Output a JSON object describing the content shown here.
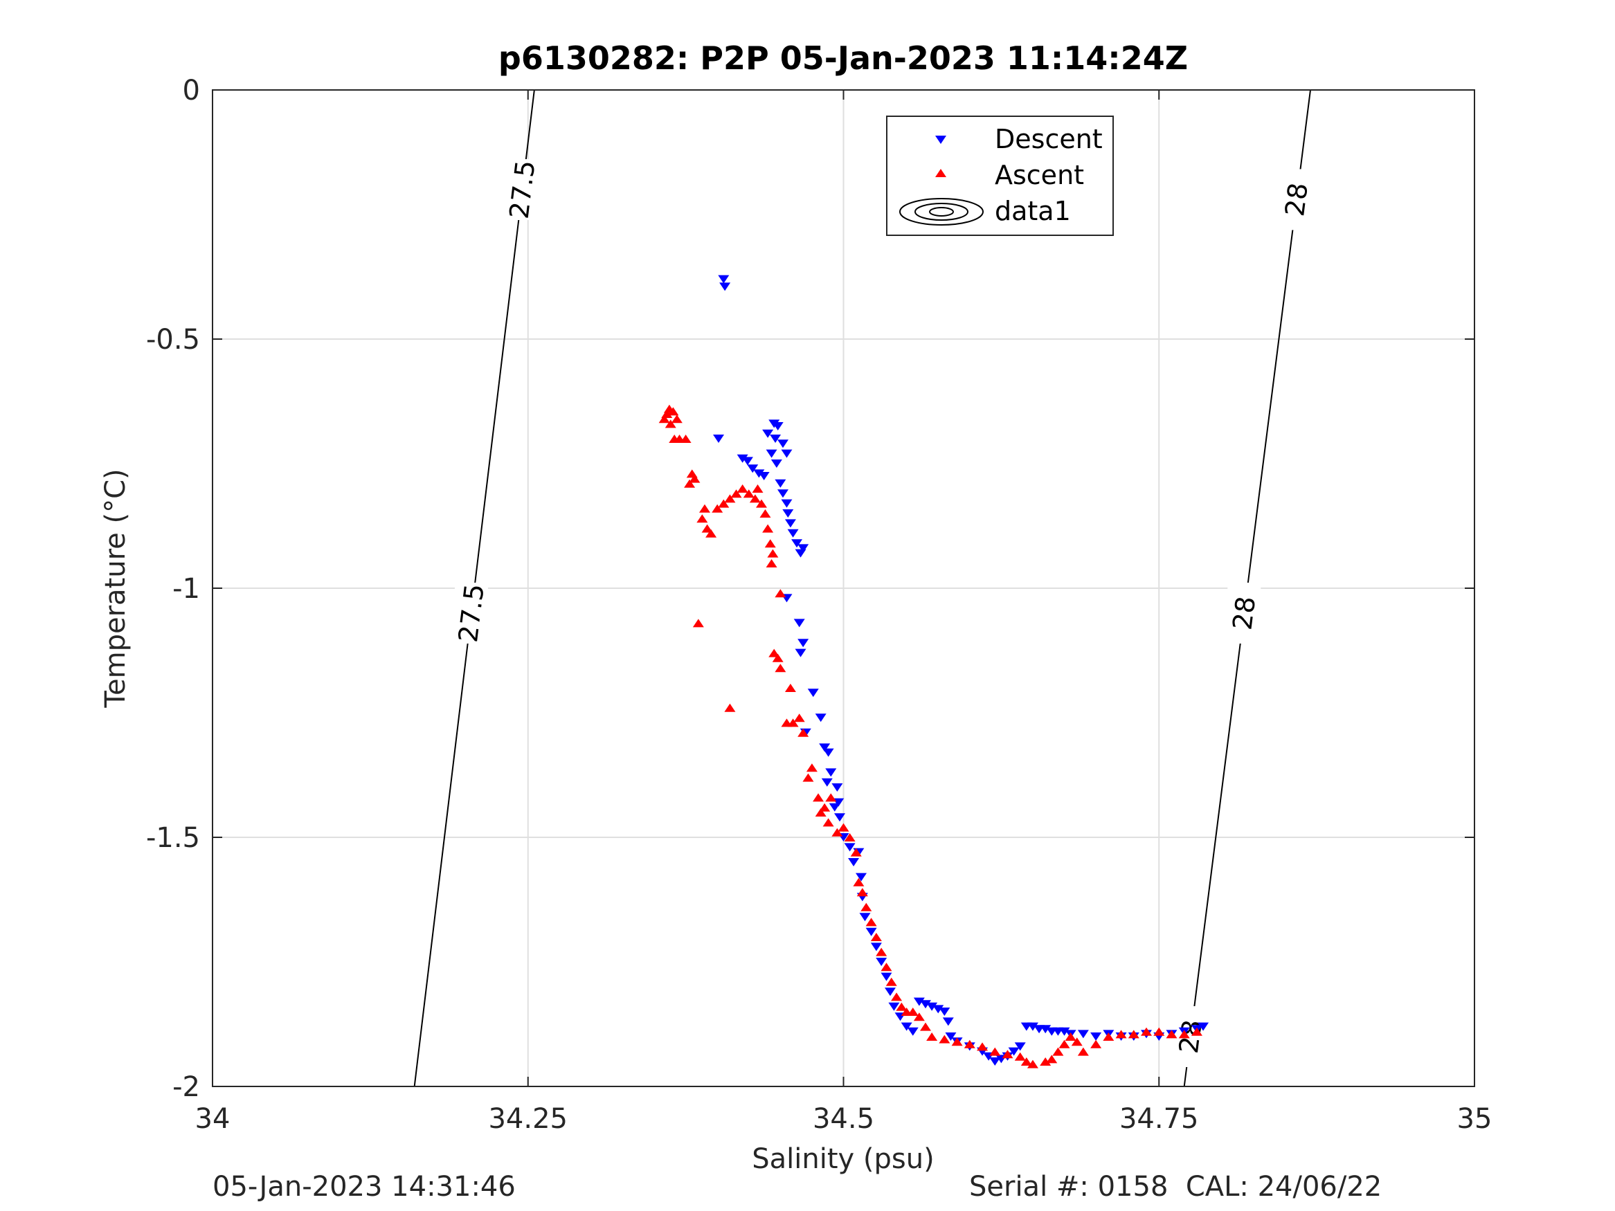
{
  "chart_data": {
    "type": "scatter",
    "title": "p6130282: P2P 05-Jan-2023 11:14:24Z",
    "xlabel": "Salinity (psu)",
    "ylabel": "Temperature (°C)",
    "xlim": [
      34,
      35
    ],
    "ylim": [
      -2,
      0
    ],
    "x_ticks": [
      34,
      34.25,
      34.5,
      34.75,
      35
    ],
    "x_tick_labels": [
      "34",
      "34.25",
      "34.5",
      "34.75",
      "35"
    ],
    "y_ticks": [
      0,
      -0.5,
      -1,
      -1.5,
      -2
    ],
    "y_tick_labels": [
      "0",
      "-0.5",
      "-1",
      "-1.5",
      "-2"
    ],
    "grid": true,
    "legend_position": "top-center",
    "series": [
      {
        "name": "Descent",
        "color": "#0000ff",
        "marker": "triangle-down",
        "points": [
          [
            34.405,
            -0.38
          ],
          [
            34.406,
            -0.395
          ],
          [
            34.401,
            -0.7
          ],
          [
            34.445,
            -0.67
          ],
          [
            34.448,
            -0.675
          ],
          [
            34.44,
            -0.69
          ],
          [
            34.446,
            -0.7
          ],
          [
            34.452,
            -0.71
          ],
          [
            34.455,
            -0.73
          ],
          [
            34.443,
            -0.73
          ],
          [
            34.447,
            -0.75
          ],
          [
            34.42,
            -0.74
          ],
          [
            34.424,
            -0.745
          ],
          [
            34.428,
            -0.76
          ],
          [
            34.433,
            -0.77
          ],
          [
            34.437,
            -0.775
          ],
          [
            34.45,
            -0.79
          ],
          [
            34.452,
            -0.81
          ],
          [
            34.455,
            -0.83
          ],
          [
            34.456,
            -0.85
          ],
          [
            34.458,
            -0.87
          ],
          [
            34.46,
            -0.89
          ],
          [
            34.463,
            -0.91
          ],
          [
            34.466,
            -0.93
          ],
          [
            34.468,
            -0.92
          ],
          [
            34.455,
            -1.02
          ],
          [
            34.465,
            -1.07
          ],
          [
            34.468,
            -1.11
          ],
          [
            34.466,
            -1.13
          ],
          [
            34.476,
            -1.21
          ],
          [
            34.482,
            -1.26
          ],
          [
            34.47,
            -1.29
          ],
          [
            34.485,
            -1.32
          ],
          [
            34.488,
            -1.33
          ],
          [
            34.49,
            -1.37
          ],
          [
            34.487,
            -1.39
          ],
          [
            34.495,
            -1.4
          ],
          [
            34.496,
            -1.43
          ],
          [
            34.493,
            -1.44
          ],
          [
            34.497,
            -1.46
          ],
          [
            34.5,
            -1.5
          ],
          [
            34.505,
            -1.52
          ],
          [
            34.508,
            -1.55
          ],
          [
            34.512,
            -1.53
          ],
          [
            34.514,
            -1.58
          ],
          [
            34.515,
            -1.62
          ],
          [
            34.517,
            -1.66
          ],
          [
            34.522,
            -1.69
          ],
          [
            34.526,
            -1.72
          ],
          [
            34.53,
            -1.75
          ],
          [
            34.534,
            -1.78
          ],
          [
            34.537,
            -1.81
          ],
          [
            34.54,
            -1.84
          ],
          [
            34.545,
            -1.86
          ],
          [
            34.55,
            -1.88
          ],
          [
            34.555,
            -1.89
          ],
          [
            34.56,
            -1.83
          ],
          [
            34.565,
            -1.835
          ],
          [
            34.57,
            -1.84
          ],
          [
            34.575,
            -1.845
          ],
          [
            34.58,
            -1.85
          ],
          [
            34.583,
            -1.87
          ],
          [
            34.585,
            -1.9
          ],
          [
            34.59,
            -1.91
          ],
          [
            34.6,
            -1.92
          ],
          [
            34.61,
            -1.93
          ],
          [
            34.615,
            -1.94
          ],
          [
            34.62,
            -1.95
          ],
          [
            34.625,
            -1.945
          ],
          [
            34.63,
            -1.94
          ],
          [
            34.635,
            -1.93
          ],
          [
            34.64,
            -1.92
          ],
          [
            34.645,
            -1.88
          ],
          [
            34.65,
            -1.88
          ],
          [
            34.655,
            -1.885
          ],
          [
            34.66,
            -1.885
          ],
          [
            34.665,
            -1.89
          ],
          [
            34.67,
            -1.89
          ],
          [
            34.675,
            -1.89
          ],
          [
            34.68,
            -1.895
          ],
          [
            34.69,
            -1.895
          ],
          [
            34.7,
            -1.9
          ],
          [
            34.71,
            -1.895
          ],
          [
            34.72,
            -1.9
          ],
          [
            34.73,
            -1.9
          ],
          [
            34.74,
            -1.895
          ],
          [
            34.75,
            -1.9
          ],
          [
            34.76,
            -1.895
          ],
          [
            34.77,
            -1.89
          ],
          [
            34.78,
            -1.885
          ],
          [
            34.785,
            -1.88
          ]
        ]
      },
      {
        "name": "Ascent",
        "color": "#ff0000",
        "marker": "triangle-up",
        "points": [
          [
            34.36,
            -0.65
          ],
          [
            34.362,
            -0.64
          ],
          [
            34.365,
            -0.645
          ],
          [
            34.358,
            -0.66
          ],
          [
            34.368,
            -0.66
          ],
          [
            34.363,
            -0.67
          ],
          [
            34.37,
            -0.7
          ],
          [
            34.375,
            -0.7
          ],
          [
            34.366,
            -0.7
          ],
          [
            34.38,
            -0.77
          ],
          [
            34.378,
            -0.79
          ],
          [
            34.382,
            -0.78
          ],
          [
            34.39,
            -0.84
          ],
          [
            34.388,
            -0.86
          ],
          [
            34.392,
            -0.88
          ],
          [
            34.395,
            -0.89
          ],
          [
            34.4,
            -0.84
          ],
          [
            34.405,
            -0.83
          ],
          [
            34.41,
            -0.82
          ],
          [
            34.415,
            -0.81
          ],
          [
            34.42,
            -0.8
          ],
          [
            34.425,
            -0.81
          ],
          [
            34.43,
            -0.82
          ],
          [
            34.432,
            -0.8
          ],
          [
            34.435,
            -0.83
          ],
          [
            34.438,
            -0.85
          ],
          [
            34.44,
            -0.88
          ],
          [
            34.442,
            -0.91
          ],
          [
            34.444,
            -0.93
          ],
          [
            34.443,
            -0.95
          ],
          [
            34.45,
            -1.01
          ],
          [
            34.385,
            -1.07
          ],
          [
            34.445,
            -1.13
          ],
          [
            34.448,
            -1.14
          ],
          [
            34.45,
            -1.16
          ],
          [
            34.458,
            -1.2
          ],
          [
            34.41,
            -1.24
          ],
          [
            34.46,
            -1.27
          ],
          [
            34.465,
            -1.26
          ],
          [
            34.455,
            -1.27
          ],
          [
            34.468,
            -1.29
          ],
          [
            34.475,
            -1.36
          ],
          [
            34.472,
            -1.38
          ],
          [
            34.48,
            -1.42
          ],
          [
            34.485,
            -1.44
          ],
          [
            34.49,
            -1.42
          ],
          [
            34.482,
            -1.45
          ],
          [
            34.488,
            -1.47
          ],
          [
            34.495,
            -1.49
          ],
          [
            34.5,
            -1.48
          ],
          [
            34.505,
            -1.5
          ],
          [
            34.51,
            -1.53
          ],
          [
            34.512,
            -1.59
          ],
          [
            34.515,
            -1.61
          ],
          [
            34.518,
            -1.64
          ],
          [
            34.522,
            -1.67
          ],
          [
            34.526,
            -1.7
          ],
          [
            34.53,
            -1.73
          ],
          [
            34.534,
            -1.76
          ],
          [
            34.538,
            -1.79
          ],
          [
            34.542,
            -1.82
          ],
          [
            34.546,
            -1.84
          ],
          [
            34.55,
            -1.85
          ],
          [
            34.555,
            -1.85
          ],
          [
            34.56,
            -1.86
          ],
          [
            34.565,
            -1.88
          ],
          [
            34.57,
            -1.9
          ],
          [
            34.58,
            -1.905
          ],
          [
            34.59,
            -1.91
          ],
          [
            34.6,
            -1.915
          ],
          [
            34.61,
            -1.92
          ],
          [
            34.62,
            -1.93
          ],
          [
            34.63,
            -1.935
          ],
          [
            34.64,
            -1.94
          ],
          [
            34.645,
            -1.95
          ],
          [
            34.65,
            -1.955
          ],
          [
            34.66,
            -1.95
          ],
          [
            34.665,
            -1.945
          ],
          [
            34.67,
            -1.93
          ],
          [
            34.675,
            -1.915
          ],
          [
            34.68,
            -1.9
          ],
          [
            34.685,
            -1.91
          ],
          [
            34.69,
            -1.93
          ],
          [
            34.7,
            -1.915
          ],
          [
            34.71,
            -1.9
          ],
          [
            34.72,
            -1.895
          ],
          [
            34.73,
            -1.895
          ],
          [
            34.74,
            -1.89
          ],
          [
            34.75,
            -1.89
          ],
          [
            34.76,
            -1.895
          ],
          [
            34.77,
            -1.895
          ],
          [
            34.78,
            -1.89
          ]
        ]
      },
      {
        "name": "data1",
        "color": "#000000",
        "marker": "contour",
        "contours": [
          {
            "level_label": "27.5",
            "line": [
              [
                34.255,
                0
              ],
              [
                34.16,
                -2
              ]
            ],
            "labels_at_y": [
              -0.2,
              -1.05
            ]
          },
          {
            "level_label": "28",
            "line": [
              [
                34.87,
                0
              ],
              [
                34.77,
                -2
              ]
            ],
            "labels_at_y": [
              -0.22,
              -1.05,
              -1.9
            ]
          }
        ]
      }
    ]
  },
  "footer": {
    "timestamp": "05-Jan-2023 14:31:46",
    "serial": "Serial #: 0158  CAL: 24/06/22"
  }
}
